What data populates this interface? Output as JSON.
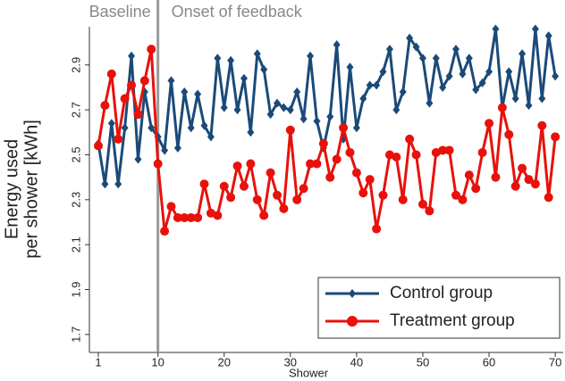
{
  "chart_data": {
    "type": "line",
    "xlabel": "Shower",
    "ylabel": [
      "Energy used",
      "per shower [kWh]"
    ],
    "annotations": [
      "Baseline",
      "Onset of feedback"
    ],
    "vline": 10,
    "x": [
      1,
      2,
      3,
      4,
      5,
      6,
      7,
      8,
      9,
      10,
      11,
      12,
      13,
      14,
      15,
      16,
      17,
      18,
      19,
      20,
      21,
      22,
      23,
      24,
      25,
      26,
      27,
      28,
      29,
      30,
      31,
      32,
      33,
      34,
      35,
      36,
      37,
      38,
      39,
      40,
      41,
      42,
      43,
      44,
      45,
      46,
      47,
      48,
      49,
      50,
      51,
      52,
      53,
      54,
      55,
      56,
      57,
      58,
      59,
      60,
      61,
      62,
      63,
      64,
      65,
      66,
      67,
      68,
      69,
      70
    ],
    "series": [
      {
        "name": "Control group",
        "color": "#1b4a78",
        "marker": "diamond",
        "values": [
          2.55,
          2.37,
          2.64,
          2.37,
          2.62,
          2.94,
          2.48,
          2.78,
          2.62,
          2.58,
          2.52,
          2.83,
          2.53,
          2.78,
          2.62,
          2.77,
          2.63,
          2.58,
          2.93,
          2.71,
          2.92,
          2.7,
          2.84,
          2.6,
          2.95,
          2.88,
          2.68,
          2.73,
          2.71,
          2.7,
          2.78,
          2.66,
          2.94,
          2.65,
          2.53,
          2.67,
          2.99,
          2.57,
          2.89,
          2.62,
          2.75,
          2.81,
          2.81,
          2.87,
          2.97,
          2.7,
          2.78,
          3.02,
          2.98,
          2.93,
          2.73,
          2.93,
          2.8,
          2.85,
          2.97,
          2.86,
          2.93,
          2.79,
          2.82,
          2.87,
          3.06,
          2.71,
          2.87,
          2.75,
          2.95,
          2.72,
          3.06,
          2.75,
          3.03,
          2.85
        ]
      },
      {
        "name": "Treatment group",
        "color": "#e8110b",
        "marker": "circle",
        "values": [
          2.54,
          2.72,
          2.86,
          2.57,
          2.75,
          2.81,
          2.68,
          2.83,
          2.97,
          2.46,
          2.16,
          2.27,
          2.22,
          2.22,
          2.22,
          2.22,
          2.37,
          2.24,
          2.23,
          2.36,
          2.31,
          2.45,
          2.36,
          2.46,
          2.3,
          2.23,
          2.42,
          2.32,
          2.26,
          2.61,
          2.3,
          2.35,
          2.46,
          2.46,
          2.55,
          2.4,
          2.48,
          2.62,
          2.51,
          2.42,
          2.33,
          2.39,
          2.17,
          2.32,
          2.5,
          2.49,
          2.3,
          2.57,
          2.5,
          2.28,
          2.25,
          2.51,
          2.52,
          2.52,
          2.32,
          2.3,
          2.41,
          2.35,
          2.51,
          2.64,
          2.4,
          2.71,
          2.59,
          2.36,
          2.44,
          2.39,
          2.37,
          2.63,
          2.31,
          2.58
        ]
      }
    ],
    "xlim": [
      -0.35,
      71.2
    ],
    "xticks": [
      1,
      10,
      20,
      30,
      40,
      50,
      60,
      70
    ],
    "ylim": [
      1.62,
      3.07
    ],
    "yticks": [
      {
        "value": 1.7,
        "label": "1.7"
      },
      {
        "value": 1.9,
        "label": "1.9"
      },
      {
        "value": 2.1,
        "label": "2.1"
      },
      {
        "value": 2.3,
        "label": "2.3"
      },
      {
        "value": 2.5,
        "label": "2.5"
      },
      {
        "value": 2.7,
        "label": "2.7"
      },
      {
        "value": 2.9,
        "label": "2.9"
      }
    ],
    "grid": false,
    "legend": "lower right"
  }
}
